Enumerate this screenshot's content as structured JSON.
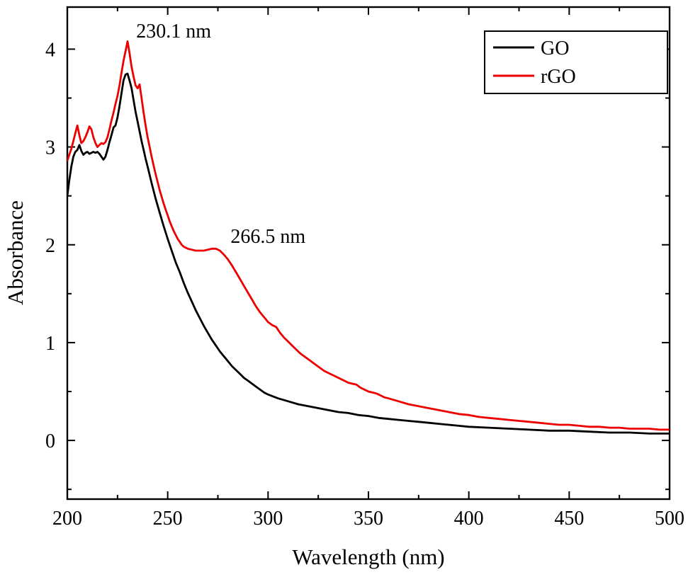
{
  "chart_data": {
    "type": "line",
    "title": "",
    "xlabel": "Wavelength (nm)",
    "ylabel": "Absorbance",
    "xlim": [
      200,
      500
    ],
    "ylim": [
      -0.6,
      4.43
    ],
    "grid": false,
    "x_major_ticks": [
      200,
      250,
      300,
      350,
      400,
      450,
      500
    ],
    "x_minor_step": 25,
    "y_major_ticks": [
      0,
      1,
      2,
      3,
      4
    ],
    "y_minor_step": 0.5,
    "background_color": "#ffffff",
    "frame_color": "#000000",
    "legend": {
      "position": "top-right",
      "entries": [
        {
          "label": "GO",
          "color": "#000000"
        },
        {
          "label": "rGO",
          "color": "#ed0000"
        }
      ]
    },
    "annotations": [
      {
        "text": "230.1 nm",
        "x": 253,
        "y": 4.12
      },
      {
        "text": "266.5 nm",
        "x": 300,
        "y": 2.02
      }
    ],
    "series": [
      {
        "name": "GO",
        "color": "#000000",
        "points": [
          [
            200,
            2.5
          ],
          [
            201,
            2.66
          ],
          [
            202,
            2.8
          ],
          [
            203,
            2.9
          ],
          [
            204,
            2.95
          ],
          [
            205,
            2.97
          ],
          [
            206,
            3.02
          ],
          [
            207,
            2.96
          ],
          [
            208,
            2.92
          ],
          [
            209,
            2.94
          ],
          [
            210,
            2.95
          ],
          [
            211,
            2.93
          ],
          [
            212,
            2.94
          ],
          [
            213,
            2.95
          ],
          [
            214,
            2.94
          ],
          [
            215,
            2.95
          ],
          [
            216,
            2.93
          ],
          [
            217,
            2.9
          ],
          [
            218,
            2.87
          ],
          [
            219,
            2.9
          ],
          [
            220,
            2.97
          ],
          [
            221,
            3.05
          ],
          [
            222,
            3.12
          ],
          [
            223,
            3.2
          ],
          [
            224,
            3.22
          ],
          [
            225,
            3.3
          ],
          [
            226,
            3.42
          ],
          [
            227,
            3.55
          ],
          [
            228,
            3.68
          ],
          [
            229,
            3.74
          ],
          [
            230,
            3.75
          ],
          [
            231,
            3.68
          ],
          [
            232,
            3.6
          ],
          [
            233,
            3.48
          ],
          [
            234,
            3.36
          ],
          [
            235,
            3.26
          ],
          [
            236,
            3.16
          ],
          [
            237,
            3.06
          ],
          [
            238,
            2.97
          ],
          [
            239,
            2.88
          ],
          [
            240,
            2.8
          ],
          [
            242,
            2.63
          ],
          [
            244,
            2.47
          ],
          [
            246,
            2.33
          ],
          [
            248,
            2.19
          ],
          [
            250,
            2.06
          ],
          [
            252,
            1.94
          ],
          [
            254,
            1.82
          ],
          [
            256,
            1.72
          ],
          [
            258,
            1.61
          ],
          [
            260,
            1.51
          ],
          [
            262,
            1.42
          ],
          [
            264,
            1.33
          ],
          [
            266,
            1.25
          ],
          [
            268,
            1.17
          ],
          [
            270,
            1.1
          ],
          [
            272,
            1.03
          ],
          [
            274,
            0.97
          ],
          [
            276,
            0.91
          ],
          [
            278,
            0.86
          ],
          [
            280,
            0.81
          ],
          [
            282,
            0.76
          ],
          [
            284,
            0.72
          ],
          [
            286,
            0.68
          ],
          [
            288,
            0.64
          ],
          [
            290,
            0.61
          ],
          [
            292,
            0.58
          ],
          [
            294,
            0.55
          ],
          [
            296,
            0.52
          ],
          [
            298,
            0.49
          ],
          [
            300,
            0.47
          ],
          [
            305,
            0.43
          ],
          [
            310,
            0.4
          ],
          [
            315,
            0.37
          ],
          [
            320,
            0.35
          ],
          [
            325,
            0.33
          ],
          [
            330,
            0.31
          ],
          [
            335,
            0.29
          ],
          [
            340,
            0.28
          ],
          [
            345,
            0.26
          ],
          [
            350,
            0.25
          ],
          [
            355,
            0.23
          ],
          [
            360,
            0.22
          ],
          [
            365,
            0.21
          ],
          [
            370,
            0.2
          ],
          [
            375,
            0.19
          ],
          [
            380,
            0.18
          ],
          [
            385,
            0.17
          ],
          [
            390,
            0.16
          ],
          [
            395,
            0.15
          ],
          [
            400,
            0.14
          ],
          [
            410,
            0.13
          ],
          [
            420,
            0.12
          ],
          [
            430,
            0.11
          ],
          [
            440,
            0.1
          ],
          [
            450,
            0.1
          ],
          [
            460,
            0.09
          ],
          [
            470,
            0.08
          ],
          [
            480,
            0.08
          ],
          [
            490,
            0.07
          ],
          [
            500,
            0.07
          ]
        ]
      },
      {
        "name": "rGO",
        "color": "#ed0000",
        "points": [
          [
            200,
            2.86
          ],
          [
            201,
            2.92
          ],
          [
            202,
            2.98
          ],
          [
            203,
            3.06
          ],
          [
            204,
            3.14
          ],
          [
            205,
            3.22
          ],
          [
            206,
            3.12
          ],
          [
            207,
            3.04
          ],
          [
            208,
            3.06
          ],
          [
            209,
            3.1
          ],
          [
            210,
            3.15
          ],
          [
            211,
            3.21
          ],
          [
            212,
            3.18
          ],
          [
            213,
            3.1
          ],
          [
            214,
            3.04
          ],
          [
            215,
            3.0
          ],
          [
            216,
            3.02
          ],
          [
            217,
            3.04
          ],
          [
            218,
            3.03
          ],
          [
            219,
            3.05
          ],
          [
            220,
            3.1
          ],
          [
            221,
            3.18
          ],
          [
            222,
            3.27
          ],
          [
            223,
            3.35
          ],
          [
            224,
            3.44
          ],
          [
            225,
            3.52
          ],
          [
            226,
            3.63
          ],
          [
            227,
            3.76
          ],
          [
            228,
            3.88
          ],
          [
            229,
            3.98
          ],
          [
            230,
            4.08
          ],
          [
            231,
            3.96
          ],
          [
            232,
            3.82
          ],
          [
            233,
            3.72
          ],
          [
            234,
            3.63
          ],
          [
            235,
            3.6
          ],
          [
            236,
            3.64
          ],
          [
            237,
            3.5
          ],
          [
            238,
            3.35
          ],
          [
            239,
            3.22
          ],
          [
            240,
            3.1
          ],
          [
            241,
            3.0
          ],
          [
            242,
            2.9
          ],
          [
            243,
            2.81
          ],
          [
            244,
            2.72
          ],
          [
            245,
            2.64
          ],
          [
            246,
            2.56
          ],
          [
            247,
            2.49
          ],
          [
            248,
            2.42
          ],
          [
            249,
            2.36
          ],
          [
            250,
            2.3
          ],
          [
            251,
            2.24
          ],
          [
            252,
            2.19
          ],
          [
            253,
            2.14
          ],
          [
            254,
            2.1
          ],
          [
            255,
            2.06
          ],
          [
            256,
            2.03
          ],
          [
            257,
            2.0
          ],
          [
            258,
            1.98
          ],
          [
            260,
            1.96
          ],
          [
            262,
            1.95
          ],
          [
            264,
            1.94
          ],
          [
            266,
            1.94
          ],
          [
            268,
            1.94
          ],
          [
            270,
            1.95
          ],
          [
            272,
            1.96
          ],
          [
            274,
            1.96
          ],
          [
            276,
            1.94
          ],
          [
            278,
            1.9
          ],
          [
            280,
            1.85
          ],
          [
            282,
            1.79
          ],
          [
            284,
            1.72
          ],
          [
            286,
            1.65
          ],
          [
            288,
            1.58
          ],
          [
            290,
            1.51
          ],
          [
            292,
            1.44
          ],
          [
            294,
            1.37
          ],
          [
            296,
            1.31
          ],
          [
            298,
            1.26
          ],
          [
            300,
            1.21
          ],
          [
            302,
            1.18
          ],
          [
            304,
            1.16
          ],
          [
            306,
            1.1
          ],
          [
            308,
            1.05
          ],
          [
            310,
            1.01
          ],
          [
            312,
            0.97
          ],
          [
            314,
            0.93
          ],
          [
            316,
            0.89
          ],
          [
            318,
            0.86
          ],
          [
            320,
            0.83
          ],
          [
            322,
            0.8
          ],
          [
            324,
            0.77
          ],
          [
            326,
            0.74
          ],
          [
            328,
            0.71
          ],
          [
            330,
            0.69
          ],
          [
            332,
            0.67
          ],
          [
            334,
            0.65
          ],
          [
            336,
            0.63
          ],
          [
            338,
            0.61
          ],
          [
            340,
            0.59
          ],
          [
            342,
            0.58
          ],
          [
            344,
            0.57
          ],
          [
            346,
            0.54
          ],
          [
            348,
            0.52
          ],
          [
            350,
            0.5
          ],
          [
            352,
            0.49
          ],
          [
            354,
            0.48
          ],
          [
            356,
            0.46
          ],
          [
            358,
            0.44
          ],
          [
            360,
            0.43
          ],
          [
            365,
            0.4
          ],
          [
            370,
            0.37
          ],
          [
            375,
            0.35
          ],
          [
            380,
            0.33
          ],
          [
            385,
            0.31
          ],
          [
            390,
            0.29
          ],
          [
            395,
            0.27
          ],
          [
            400,
            0.26
          ],
          [
            405,
            0.24
          ],
          [
            410,
            0.23
          ],
          [
            415,
            0.22
          ],
          [
            420,
            0.21
          ],
          [
            425,
            0.2
          ],
          [
            430,
            0.19
          ],
          [
            435,
            0.18
          ],
          [
            440,
            0.17
          ],
          [
            445,
            0.16
          ],
          [
            450,
            0.16
          ],
          [
            455,
            0.15
          ],
          [
            460,
            0.14
          ],
          [
            465,
            0.14
          ],
          [
            470,
            0.13
          ],
          [
            475,
            0.13
          ],
          [
            480,
            0.12
          ],
          [
            485,
            0.12
          ],
          [
            490,
            0.12
          ],
          [
            495,
            0.11
          ],
          [
            500,
            0.11
          ]
        ]
      }
    ]
  }
}
